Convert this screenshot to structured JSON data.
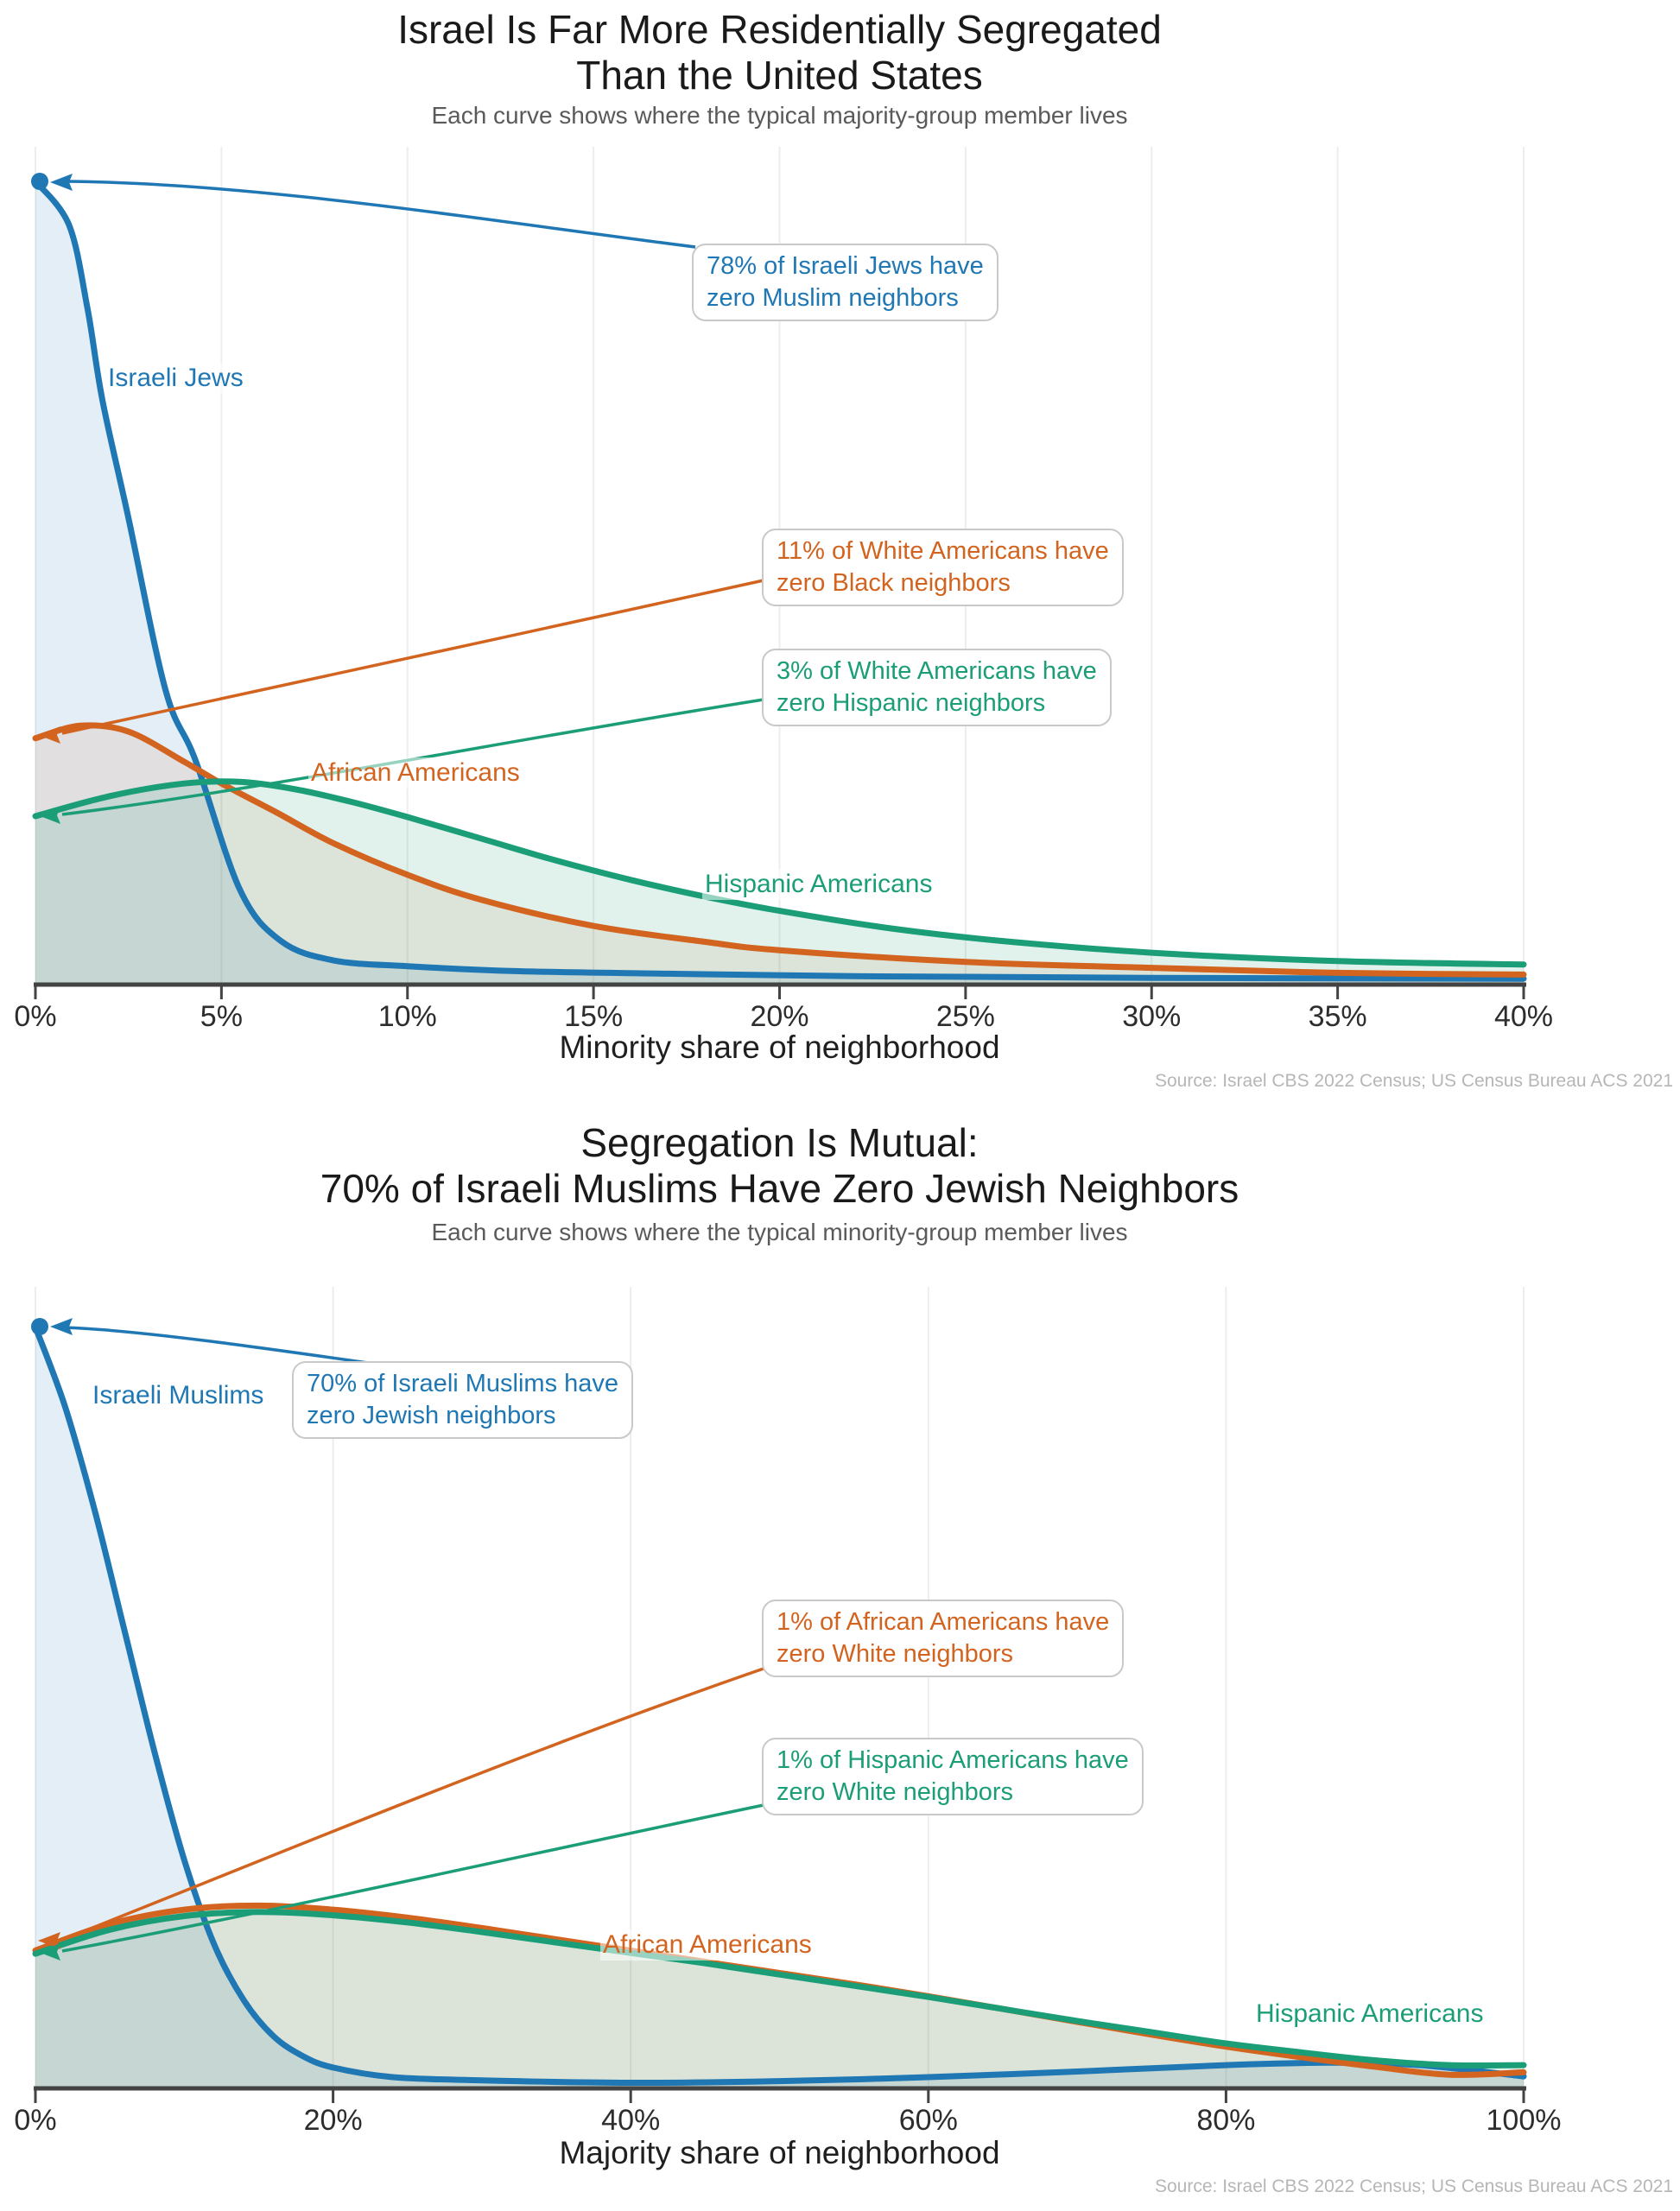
{
  "colors": {
    "blue": "#1f77b4",
    "orange": "#d2641f",
    "green": "#1b9e77",
    "axis": "#434343",
    "grid": "#ededed",
    "tick_text": "#2d2d2d",
    "title": "#1a1a1a",
    "subtitle": "#5a5a5a",
    "source": "#b6b6b6"
  },
  "chart_data": [
    {
      "type": "line",
      "title": "Israel Is Far More Residentially Segregated Than the United States",
      "title_lines": [
        "Israel Is Far More Residentially Segregated",
        "Than the United States"
      ],
      "subtitle": "Each curve shows where the typical majority-group member lives",
      "xlabel": "Minority share of neighborhood",
      "ylabel": "",
      "y_axis_hidden": true,
      "y_units": "relative density, estimated 0-100 (y axis unlabeled in figure)",
      "x_range": [
        0,
        40
      ],
      "grid": "vertical gridlines only",
      "legend": "inline colored labels on curves",
      "source": "Source: Israel CBS 2022 Census; US Census Bureau ACS 2021",
      "x_ticks": {
        "values": [
          0,
          5,
          10,
          15,
          20,
          25,
          30,
          35,
          40
        ],
        "labels": [
          "0%",
          "5%",
          "10%",
          "15%",
          "20%",
          "25%",
          "30%",
          "35%",
          "40%"
        ]
      },
      "series": [
        {
          "name": "Israeli Jews",
          "color": "#1f77b4",
          "fill_opacity": 0.12,
          "start_marker": "dot at x=0",
          "points": [
            [
              0,
              95.9
            ],
            [
              0.9,
              90.7
            ],
            [
              1.4,
              80.7
            ],
            [
              1.8,
              69.8
            ],
            [
              2.5,
              55.7
            ],
            [
              3.5,
              35.1
            ],
            [
              4.3,
              26.8
            ],
            [
              5.5,
              11.3
            ],
            [
              6.6,
              5.2
            ],
            [
              8,
              2.9
            ],
            [
              10,
              2.2
            ],
            [
              13,
              1.6
            ],
            [
              17,
              1.3
            ],
            [
              22,
              1.0
            ],
            [
              30,
              0.8
            ],
            [
              40,
              0.7
            ]
          ]
        },
        {
          "name": "African Americans",
          "color": "#d2641f",
          "fill_opacity": 0.1,
          "start_marker": "arrow at x=0",
          "points": [
            [
              0,
              29.4
            ],
            [
              1.2,
              30.9
            ],
            [
              2.5,
              30.2
            ],
            [
              4,
              26.6
            ],
            [
              5,
              24.0
            ],
            [
              6.5,
              20.5
            ],
            [
              8,
              16.9
            ],
            [
              10,
              13.1
            ],
            [
              12,
              10.1
            ],
            [
              15,
              7.0
            ],
            [
              18,
              5.1
            ],
            [
              20,
              4.1
            ],
            [
              25,
              2.7
            ],
            [
              30,
              2.0
            ],
            [
              35,
              1.4
            ],
            [
              40,
              1.2
            ]
          ]
        },
        {
          "name": "Hispanic Americans",
          "color": "#1b9e77",
          "fill_opacity": 0.13,
          "start_marker": "arrow at x=0",
          "points": [
            [
              0,
              20.1
            ],
            [
              2,
              22.5
            ],
            [
              4,
              24.0
            ],
            [
              5.5,
              24.2
            ],
            [
              7,
              23.3
            ],
            [
              8.5,
              21.8
            ],
            [
              10,
              20.0
            ],
            [
              12,
              17.4
            ],
            [
              14,
              14.8
            ],
            [
              16,
              12.5
            ],
            [
              18,
              10.5
            ],
            [
              20,
              8.8
            ],
            [
              23,
              6.7
            ],
            [
              26,
              5.2
            ],
            [
              30,
              3.8
            ],
            [
              35,
              2.8
            ],
            [
              40,
              2.4
            ]
          ]
        }
      ],
      "annotations": [
        {
          "lines": [
            "78% of Israeli Jews have",
            "zero Muslim neighbors"
          ],
          "color": "#1f77b4"
        },
        {
          "lines": [
            "11% of White Americans have",
            "zero Black neighbors"
          ],
          "color": "#d2641f"
        },
        {
          "lines": [
            "3% of White Americans have",
            "zero Hispanic neighbors"
          ],
          "color": "#1b9e77"
        }
      ]
    },
    {
      "type": "line",
      "title": "Segregation Is Mutual: 70% of Israeli Muslims Have Zero Jewish Neighbors",
      "title_lines": [
        "Segregation Is Mutual:",
        "70% of Israeli Muslims Have Zero Jewish Neighbors"
      ],
      "subtitle": "Each curve shows where the typical minority-group member lives",
      "xlabel": "Majority share of neighborhood",
      "ylabel": "",
      "y_axis_hidden": true,
      "y_units": "relative density, estimated 0-100 (y axis unlabeled in figure)",
      "x_range": [
        0,
        100
      ],
      "grid": "vertical gridlines only",
      "legend": "inline colored labels on curves",
      "source": "Source: Israel CBS 2022 Census; US Census Bureau ACS 2021",
      "x_ticks": {
        "values": [
          0,
          20,
          40,
          60,
          80,
          100
        ],
        "labels": [
          "0%",
          "20%",
          "40%",
          "60%",
          "80%",
          "100%"
        ]
      },
      "series": [
        {
          "name": "Israeli Muslims",
          "color": "#1f77b4",
          "fill_opacity": 0.12,
          "start_marker": "dot at x=0",
          "points": [
            [
              0,
              95
            ],
            [
              2,
              85
            ],
            [
              4,
              72
            ],
            [
              6,
              57
            ],
            [
              8,
              42
            ],
            [
              10,
              28.5
            ],
            [
              12,
              18
            ],
            [
              14,
              11
            ],
            [
              16,
              6.5
            ],
            [
              18,
              4.0
            ],
            [
              20,
              2.6
            ],
            [
              24,
              1.4
            ],
            [
              30,
              1.0
            ],
            [
              40,
              0.7
            ],
            [
              50,
              0.9
            ],
            [
              60,
              1.4
            ],
            [
              70,
              2.1
            ],
            [
              80,
              2.9
            ],
            [
              87,
              3.2
            ],
            [
              93,
              2.9
            ],
            [
              100,
              1.5
            ]
          ]
        },
        {
          "name": "African Americans",
          "color": "#d2641f",
          "fill_opacity": 0.1,
          "start_marker": "arrow at x=0",
          "points": [
            [
              0,
              17.2
            ],
            [
              5,
              20.5
            ],
            [
              10,
              22.3
            ],
            [
              15,
              22.8
            ],
            [
              20,
              22.3
            ],
            [
              25,
              21.3
            ],
            [
              30,
              20.0
            ],
            [
              35,
              18.6
            ],
            [
              40,
              17.2
            ],
            [
              45,
              15.8
            ],
            [
              50,
              14.4
            ],
            [
              55,
              13.0
            ],
            [
              60,
              11.5
            ],
            [
              65,
              9.9
            ],
            [
              70,
              8.3
            ],
            [
              75,
              6.7
            ],
            [
              80,
              5.2
            ],
            [
              85,
              3.9
            ],
            [
              90,
              2.7
            ],
            [
              95,
              1.7
            ],
            [
              100,
              2.0
            ]
          ]
        },
        {
          "name": "Hispanic Americans",
          "color": "#1b9e77",
          "fill_opacity": 0.13,
          "start_marker": "arrow at x=0",
          "points": [
            [
              0,
              16.8
            ],
            [
              5,
              19.8
            ],
            [
              10,
              21.5
            ],
            [
              15,
              22.0
            ],
            [
              20,
              21.6
            ],
            [
              25,
              20.7
            ],
            [
              30,
              19.5
            ],
            [
              35,
              18.2
            ],
            [
              40,
              16.9
            ],
            [
              45,
              15.6
            ],
            [
              50,
              14.2
            ],
            [
              55,
              12.8
            ],
            [
              60,
              11.4
            ],
            [
              65,
              9.9
            ],
            [
              70,
              8.4
            ],
            [
              75,
              7.0
            ],
            [
              80,
              5.6
            ],
            [
              85,
              4.5
            ],
            [
              90,
              3.5
            ],
            [
              95,
              2.9
            ],
            [
              100,
              2.9
            ]
          ]
        }
      ],
      "annotations": [
        {
          "lines": [
            "70% of Israeli Muslims have",
            "zero Jewish neighbors"
          ],
          "color": "#1f77b4"
        },
        {
          "lines": [
            "1% of African Americans have",
            "zero White neighbors"
          ],
          "color": "#d2641f"
        },
        {
          "lines": [
            "1% of Hispanic Americans have",
            "zero White neighbors"
          ],
          "color": "#1b9e77"
        }
      ]
    }
  ]
}
